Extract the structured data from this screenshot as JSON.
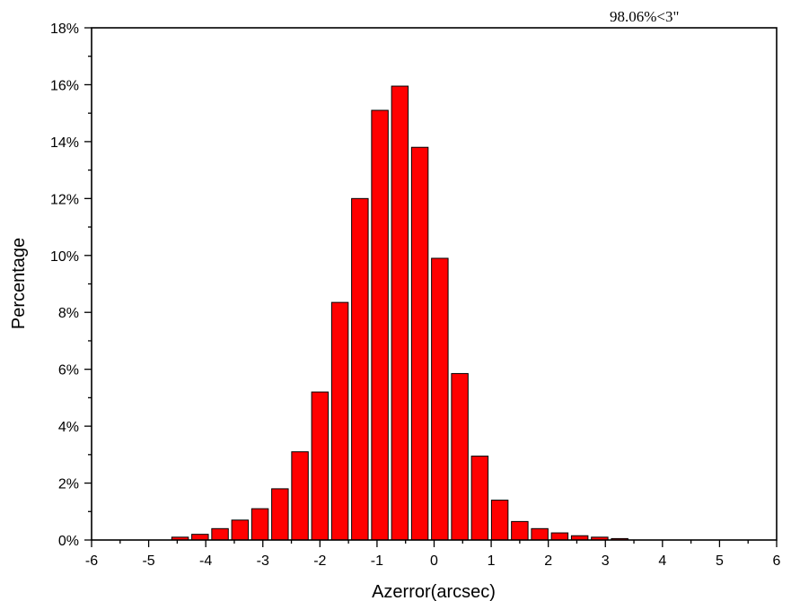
{
  "chart_data": {
    "type": "bar",
    "title": "",
    "xlabel": "Azerror(arcsec)",
    "ylabel": "Percentage",
    "annotation": "98.06%<3\"",
    "xlim": [
      -6,
      6
    ],
    "ylim": [
      0,
      18
    ],
    "x_ticks": [
      "-6",
      "-5",
      "-4",
      "-3",
      "-2",
      "-1",
      "0",
      "1",
      "2",
      "3",
      "4",
      "5",
      "6"
    ],
    "y_ticks": [
      "0%",
      "2%",
      "4%",
      "6%",
      "8%",
      "10%",
      "12%",
      "14%",
      "16%",
      "18%"
    ],
    "bin_width": 0.35,
    "x": [
      -4.45,
      -4.1,
      -3.75,
      -3.4,
      -3.05,
      -2.7,
      -2.35,
      -2.0,
      -1.65,
      -1.3,
      -0.95,
      -0.6,
      -0.25,
      0.1,
      0.45,
      0.8,
      1.15,
      1.5,
      1.85,
      2.2,
      2.55,
      2.9,
      3.25
    ],
    "values": [
      0.1,
      0.2,
      0.4,
      0.7,
      1.1,
      1.8,
      3.1,
      5.2,
      8.35,
      12.0,
      15.1,
      15.95,
      13.8,
      9.9,
      5.85,
      2.95,
      1.4,
      0.65,
      0.4,
      0.25,
      0.15,
      0.1,
      0.05
    ],
    "colors": {
      "bar_fill": "#ff0000",
      "bar_edge": "#000000"
    },
    "grid": false,
    "legend": "none"
  }
}
